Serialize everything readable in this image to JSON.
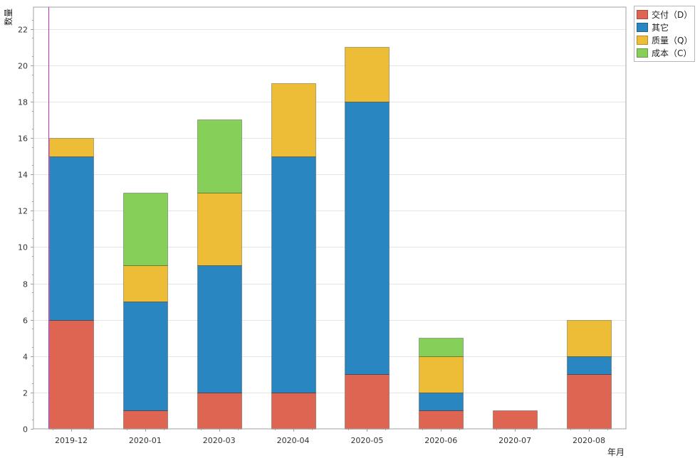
{
  "chart_data": {
    "type": "bar",
    "stacked": true,
    "categories": [
      "2019-12",
      "2020-01",
      "2020-03",
      "2020-04",
      "2020-05",
      "2020-06",
      "2020-07",
      "2020-08"
    ],
    "series": [
      {
        "name": "交付（D）",
        "color": "#de6551",
        "values": [
          6,
          1,
          2,
          2,
          3,
          1,
          1,
          3
        ]
      },
      {
        "name": "其它",
        "color": "#2986c0",
        "values": [
          9,
          6,
          7,
          13,
          15,
          1,
          0,
          1
        ]
      },
      {
        "name": "质量（Q）",
        "color": "#eebd38",
        "values": [
          1,
          2,
          4,
          4,
          3,
          2,
          0,
          2
        ]
      },
      {
        "name": "成本（C）",
        "color": "#86cf59",
        "values": [
          0,
          4,
          4,
          0,
          0,
          1,
          0,
          0
        ]
      }
    ],
    "xlabel": "年月",
    "ylabel": "数量",
    "ylim": [
      0,
      23.2
    ],
    "yticks": [
      "0",
      "2",
      "4",
      "6",
      "8",
      "10",
      "12",
      "14",
      "16",
      "18",
      "20",
      "22"
    ],
    "grid": true,
    "legend_position": "top-right",
    "colors": {
      "grid": "#e4e4e4",
      "axis": "#a0a0a0",
      "marker_line": "#c030c0"
    }
  }
}
